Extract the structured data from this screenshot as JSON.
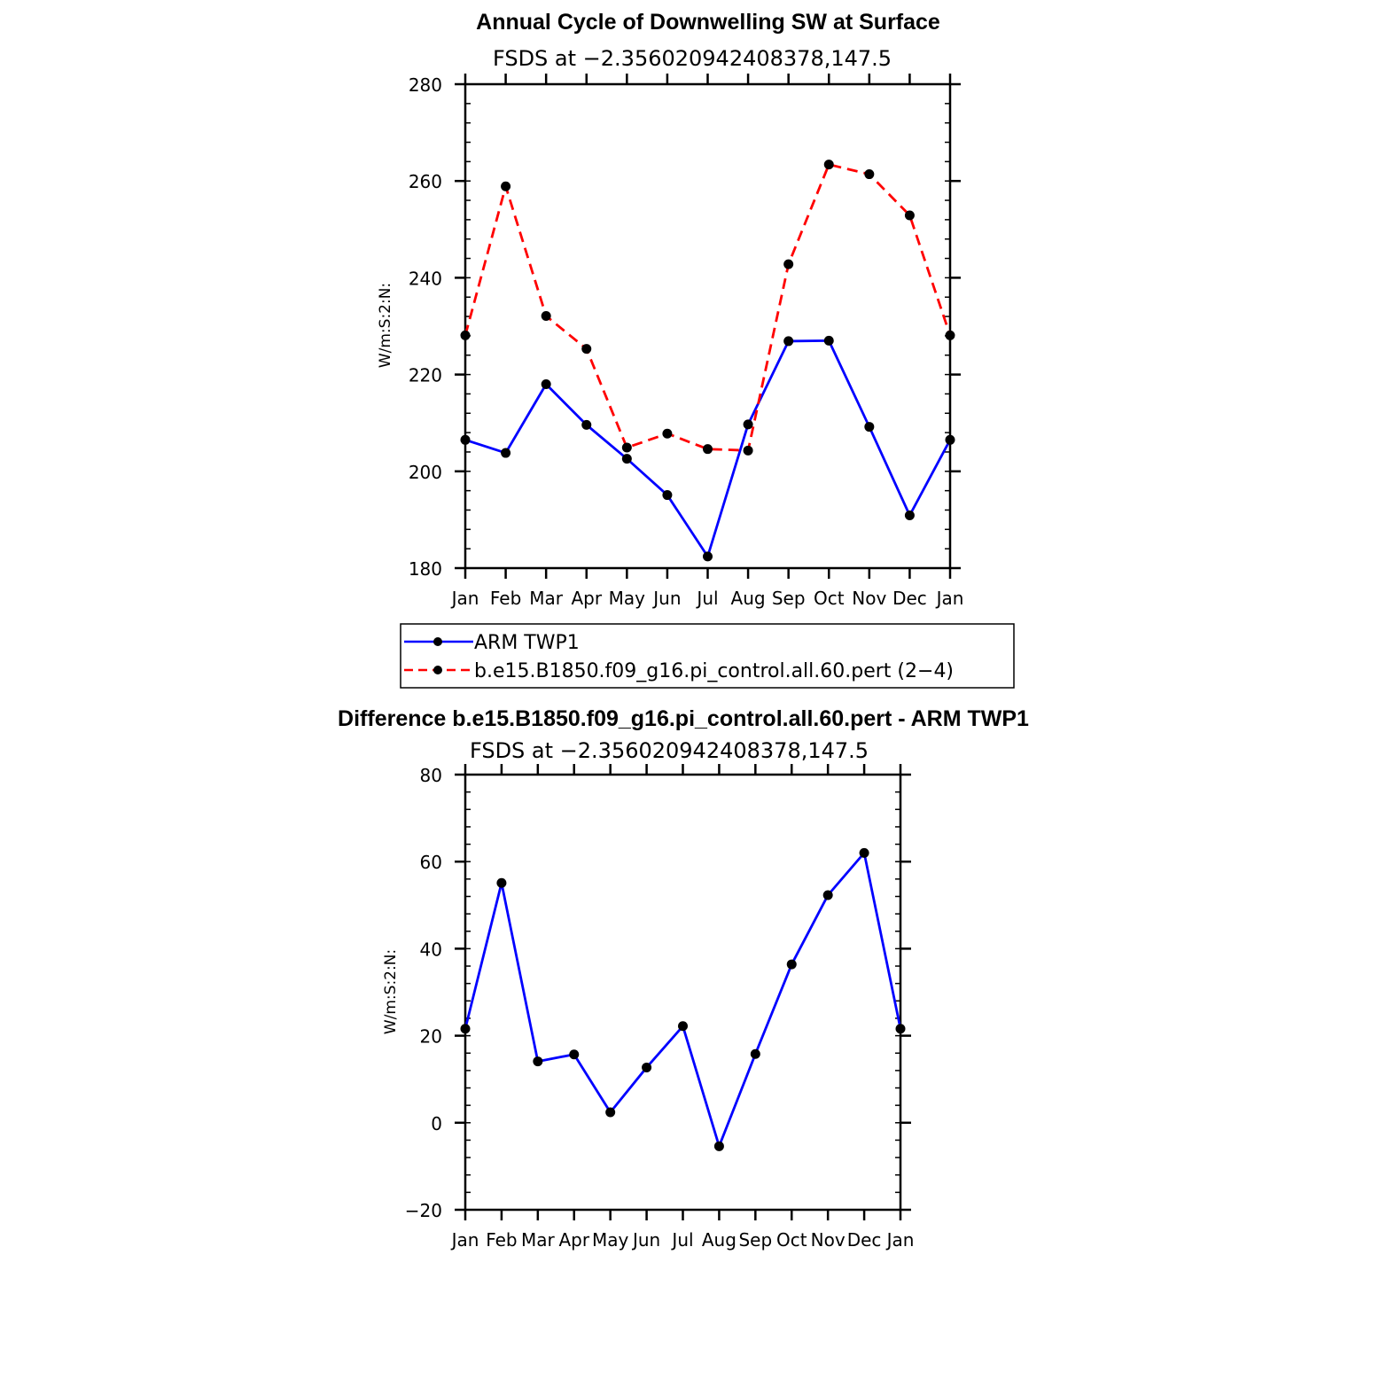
{
  "chart_data": [
    {
      "type": "line",
      "title": "Annual Cycle of Downwelling SW at Surface",
      "subtitle": "FSDS at −2.356020942408378,147.5",
      "ylabel": "W/m:S:2:N:",
      "xlabel": "",
      "categories": [
        "Jan",
        "Feb",
        "Mar",
        "Apr",
        "May",
        "Jun",
        "Jul",
        "Aug",
        "Sep",
        "Oct",
        "Nov",
        "Dec",
        "Jan"
      ],
      "yticks": [
        "180",
        "200",
        "220",
        "240",
        "260",
        "280"
      ],
      "ylim": [
        180,
        280
      ],
      "grid": false,
      "legend_position": "bottom",
      "series": [
        {
          "name": "ARM TWP1",
          "color": "#0000ff",
          "style": "solid",
          "values": [
            206.5,
            203.8,
            218.0,
            209.6,
            202.6,
            195.1,
            182.4,
            209.7,
            226.9,
            227.0,
            209.2,
            190.9,
            206.5
          ]
        },
        {
          "name": "b.e15.B1850.f09_g16.pi_control.all.60.pert (2−4)",
          "color": "#ff0000",
          "style": "dashed",
          "values": [
            228.1,
            258.9,
            232.1,
            225.3,
            204.9,
            207.8,
            204.6,
            204.3,
            242.8,
            263.4,
            261.4,
            252.9,
            228.1
          ]
        }
      ]
    },
    {
      "type": "line",
      "title": "Difference b.e15.B1850.f09_g16.pi_control.all.60.pert - ARM TWP1",
      "subtitle": "FSDS at −2.356020942408378,147.5",
      "ylabel": "W/m:S:2:N:",
      "xlabel": "",
      "categories": [
        "Jan",
        "Feb",
        "Mar",
        "Apr",
        "May",
        "Jun",
        "Jul",
        "Aug",
        "Sep",
        "Oct",
        "Nov",
        "Dec",
        "Jan"
      ],
      "yticks": [
        "−20",
        "0",
        "20",
        "40",
        "60",
        "80"
      ],
      "ylim": [
        -20,
        80
      ],
      "grid": false,
      "series": [
        {
          "color": "#0000ff",
          "style": "solid",
          "values": [
            21.6,
            55.1,
            14.1,
            15.7,
            2.4,
            12.7,
            22.2,
            -5.4,
            15.8,
            36.4,
            52.3,
            62.0,
            21.6
          ]
        }
      ]
    }
  ]
}
